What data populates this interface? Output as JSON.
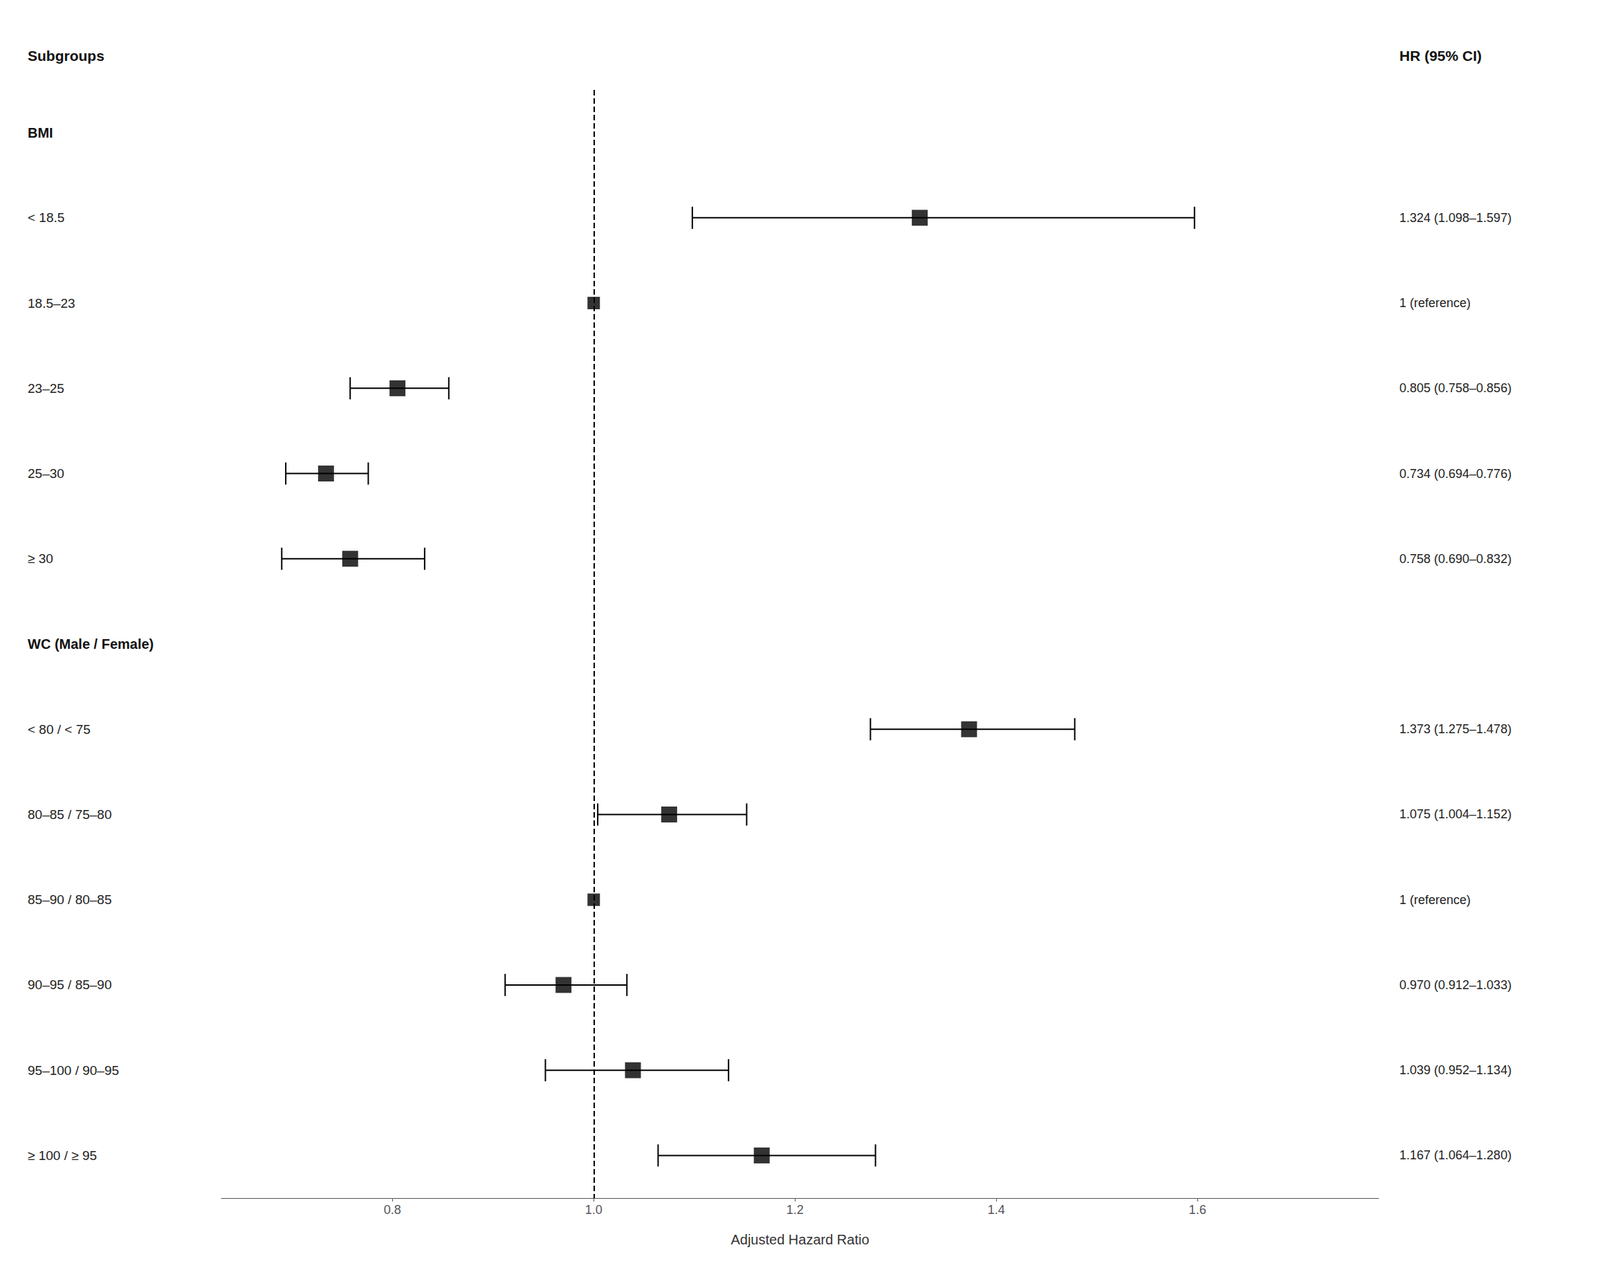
{
  "chart_data": {
    "type": "forest",
    "ylabel": "Subgroups",
    "y2label": "HR (95% CI)",
    "xlabel": "Adjusted Hazard Ratio",
    "categories": [
      "BMI",
      "< 18.5",
      "18.5–23",
      "23–25",
      "25–30",
      "≥ 30",
      "WC (Male / Female)",
      "< 80 / < 75",
      "80–85 / 75–80",
      "85–90 / 80–85",
      "90–95 / 85–90",
      "95–100 / 90–95",
      "≥ 100 / ≥ 95"
    ],
    "values": [
      null,
      1.324,
      1.0,
      0.805,
      0.734,
      0.758,
      null,
      1.373,
      1.075,
      1.0,
      0.97,
      1.039,
      1.167
    ],
    "ci_low": [
      null,
      1.098,
      null,
      0.758,
      0.694,
      0.69,
      null,
      1.275,
      1.004,
      null,
      0.912,
      0.952,
      1.064
    ],
    "ci_high": [
      null,
      1.597,
      null,
      0.856,
      0.776,
      0.832,
      null,
      1.478,
      1.152,
      null,
      1.033,
      1.134,
      1.28
    ],
    "value_labels": [
      null,
      "1.324 (1.098–1.597)",
      "1 (reference)",
      "0.805 (0.758–0.856)",
      "0.734 (0.694–0.776)",
      "0.758 (0.690–0.832)",
      null,
      "1.373 (1.275–1.478)",
      "1.075 (1.004–1.152)",
      "1 (reference)",
      "0.970 (0.912–1.033)",
      "1.039 (0.952–1.134)",
      "1.167 (1.064–1.280)"
    ],
    "ref_line": 1.0,
    "xlim": [
      0.63,
      1.78
    ],
    "xticks": [
      0.8,
      {
        "value": 1.0,
        "label": "1.0"
      },
      1.2,
      1.4,
      1.6
    ],
    "grid": false,
    "marker": "square",
    "color": "black"
  }
}
